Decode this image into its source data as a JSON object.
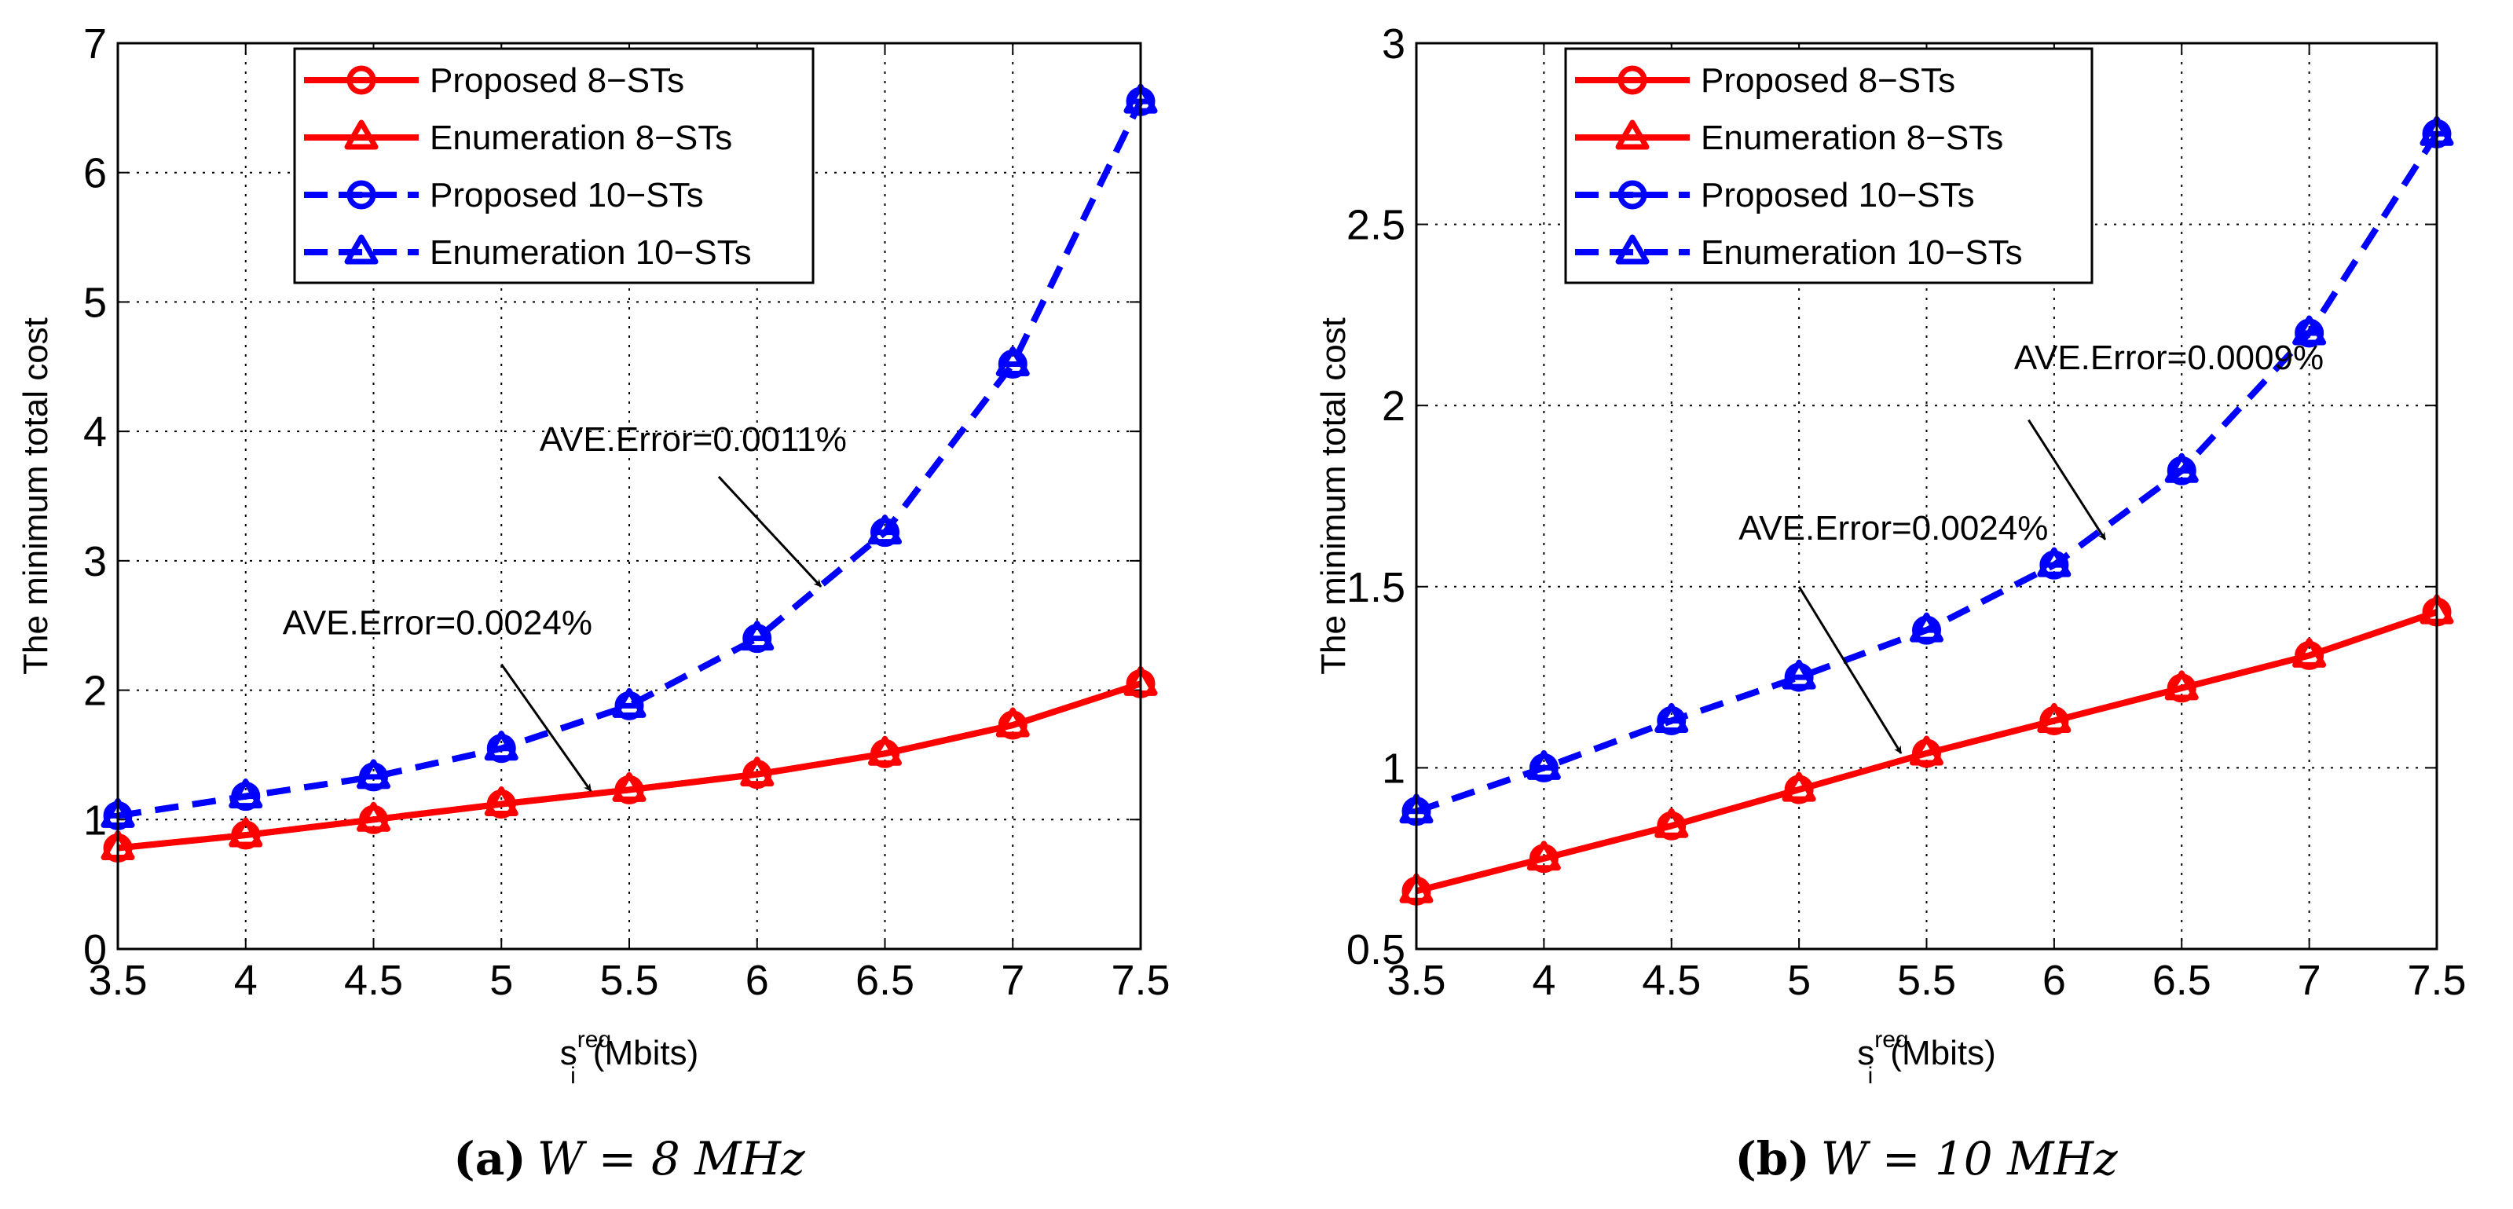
{
  "chart_data": [
    {
      "type": "line",
      "panel_id": "a",
      "caption_label": "(a)",
      "caption_text": "W = 8 MHz",
      "xlabel": "s",
      "xlabel_sub": "i",
      "xlabel_sup": "req",
      "xlabel_unit": "(Mbits)",
      "ylabel": "The minimum total cost",
      "xlim": [
        3.5,
        7.5
      ],
      "ylim": [
        0,
        7
      ],
      "xticks": [
        3.5,
        4,
        4.5,
        5,
        5.5,
        6,
        6.5,
        7,
        7.5
      ],
      "xtick_labels": [
        "3.5",
        "4",
        "4.5",
        "5",
        "5.5",
        "6",
        "6.5",
        "7",
        "7.5"
      ],
      "yticks": [
        0,
        1,
        2,
        3,
        4,
        5,
        6,
        7
      ],
      "ytick_labels": [
        "0",
        "1",
        "2",
        "3",
        "4",
        "5",
        "6",
        "7"
      ],
      "grid": true,
      "legend_position": "top-center",
      "x": [
        3.5,
        4,
        4.5,
        5,
        5.5,
        6,
        6.5,
        7,
        7.5
      ],
      "series": [
        {
          "name": "Proposed 8−STs",
          "color": "#ff0000",
          "style": "solid",
          "marker": "circle",
          "values": [
            0.78,
            0.88,
            1.0,
            1.12,
            1.23,
            1.35,
            1.51,
            1.73,
            2.05
          ]
        },
        {
          "name": "Enumeration 8−STs",
          "color": "#ff0000",
          "style": "solid",
          "marker": "triangle",
          "values": [
            0.78,
            0.88,
            1.0,
            1.12,
            1.23,
            1.35,
            1.51,
            1.73,
            2.05
          ]
        },
        {
          "name": "Proposed 10−STs",
          "color": "#0000ff",
          "style": "dashed",
          "marker": "circle-bar",
          "values": [
            1.03,
            1.18,
            1.33,
            1.55,
            1.88,
            2.4,
            3.22,
            4.52,
            6.55
          ]
        },
        {
          "name": "Enumeration 10−STs",
          "color": "#0000ff",
          "style": "dashed",
          "marker": "triangle",
          "values": [
            1.03,
            1.18,
            1.33,
            1.55,
            1.88,
            2.4,
            3.22,
            4.52,
            6.55
          ]
        }
      ],
      "annotations": [
        {
          "text": "AVE.Error=0.0011%",
          "text_x": 5.75,
          "text_y": 3.85,
          "arrow_from": [
            5.85,
            3.65
          ],
          "arrow_to": [
            6.25,
            2.8
          ]
        },
        {
          "text": "AVE.Error=0.0024%",
          "text_x": 4.75,
          "text_y": 2.43,
          "arrow_from": [
            5.0,
            2.2
          ],
          "arrow_to": [
            5.35,
            1.22
          ]
        }
      ]
    },
    {
      "type": "line",
      "panel_id": "b",
      "caption_label": "(b)",
      "caption_text": "W = 10 MHz",
      "xlabel": "s",
      "xlabel_sub": "i",
      "xlabel_sup": "req",
      "xlabel_unit": "(Mbits)",
      "ylabel": "The minimum total cost",
      "xlim": [
        3.5,
        7.5
      ],
      "ylim": [
        0.5,
        3
      ],
      "xticks": [
        3.5,
        4,
        4.5,
        5,
        5.5,
        6,
        6.5,
        7,
        7.5
      ],
      "xtick_labels": [
        "3.5",
        "4",
        "4.5",
        "5",
        "5.5",
        "6",
        "6.5",
        "7",
        "7.5"
      ],
      "yticks": [
        0.5,
        1,
        1.5,
        2,
        2.5,
        3
      ],
      "ytick_labels": [
        "0.5",
        "1",
        "1.5",
        "2",
        "2.5",
        "3"
      ],
      "grid": true,
      "legend_position": "top-center",
      "x": [
        3.5,
        4,
        4.5,
        5,
        5.5,
        6,
        6.5,
        7,
        7.5
      ],
      "series": [
        {
          "name": "Proposed 8−STs",
          "color": "#ff0000",
          "style": "solid",
          "marker": "circle",
          "values": [
            0.66,
            0.75,
            0.84,
            0.94,
            1.04,
            1.13,
            1.22,
            1.31,
            1.43
          ]
        },
        {
          "name": "Enumeration 8−STs",
          "color": "#ff0000",
          "style": "solid",
          "marker": "triangle",
          "values": [
            0.66,
            0.75,
            0.84,
            0.94,
            1.04,
            1.13,
            1.22,
            1.31,
            1.43
          ]
        },
        {
          "name": "Proposed 10−STs",
          "color": "#0000ff",
          "style": "dashed",
          "marker": "circle-bar",
          "values": [
            0.88,
            1.0,
            1.13,
            1.25,
            1.38,
            1.56,
            1.82,
            2.2,
            2.75
          ]
        },
        {
          "name": "Enumeration 10−STs",
          "color": "#0000ff",
          "style": "dashed",
          "marker": "triangle",
          "values": [
            0.88,
            1.0,
            1.13,
            1.25,
            1.38,
            1.56,
            1.82,
            2.2,
            2.75
          ]
        }
      ],
      "annotations": [
        {
          "text": "AVE.Error=0.0009%",
          "text_x": 6.45,
          "text_y": 2.1,
          "arrow_from": [
            5.9,
            1.96
          ],
          "arrow_to": [
            6.2,
            1.63
          ]
        },
        {
          "text": "AVE.Error=0.0024%",
          "text_x": 5.37,
          "text_y": 1.63,
          "arrow_from": [
            5.0,
            1.5
          ],
          "arrow_to": [
            5.4,
            1.04
          ]
        }
      ]
    }
  ]
}
